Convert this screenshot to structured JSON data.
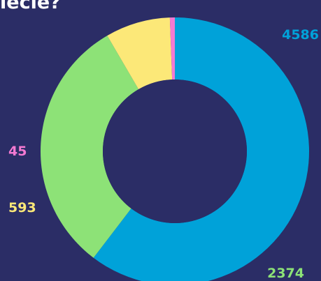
{
  "title": "iecie?",
  "background_color": "#2b2d66",
  "chart_data": {
    "type": "pie",
    "donut": true,
    "slices": [
      {
        "value": 4586,
        "label": "4586",
        "color": "#00a2d9"
      },
      {
        "value": 2374,
        "label": "2374",
        "color": "#8de277"
      },
      {
        "value": 593,
        "label": "593",
        "color": "#fce878"
      },
      {
        "value": 45,
        "label": "45",
        "color": "#f47ad2"
      }
    ]
  }
}
